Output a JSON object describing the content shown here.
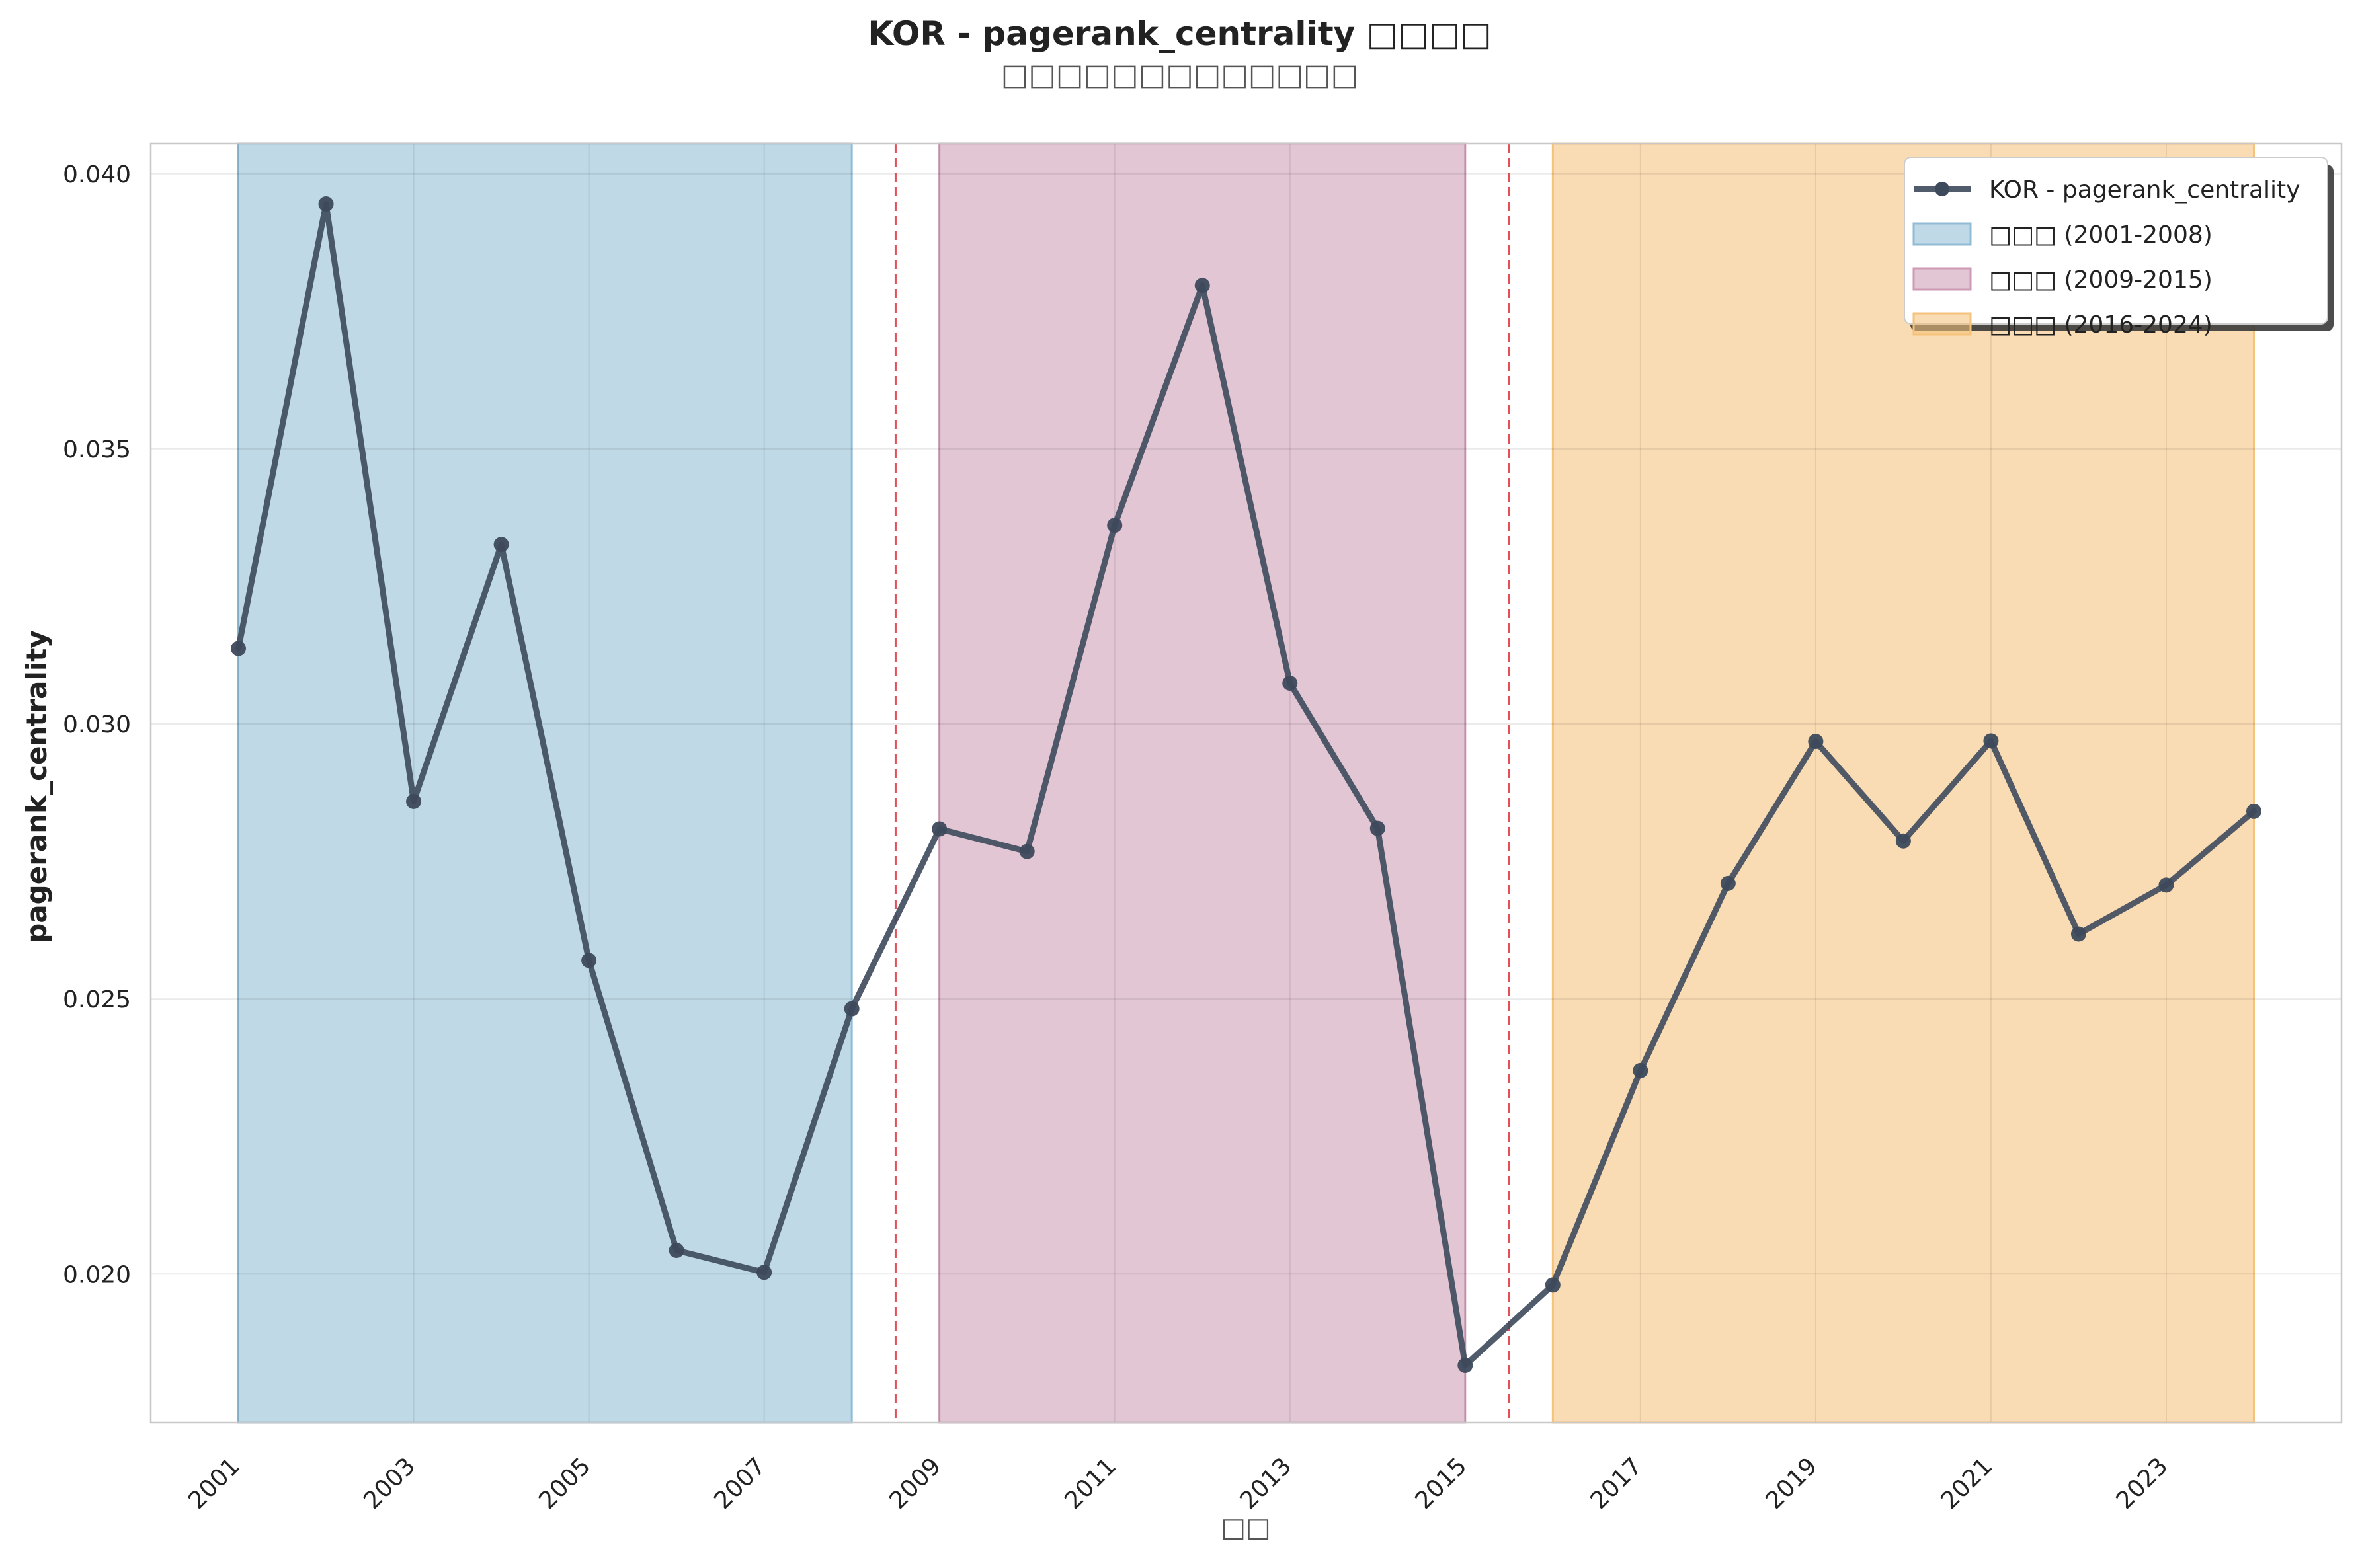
{
  "chart_data": {
    "type": "line",
    "title": "KOR - pagerank_centrality □□□□",
    "subtitle": "□□□□□□□□□□□□□",
    "xlabel": "□□",
    "ylabel": "pagerank_centrality",
    "x": [
      2001,
      2002,
      2003,
      2004,
      2005,
      2006,
      2007,
      2008,
      2009,
      2010,
      2011,
      2012,
      2013,
      2014,
      2015,
      2016,
      2017,
      2018,
      2019,
      2020,
      2021,
      2022,
      2023,
      2024
    ],
    "series": [
      {
        "name": "KOR - pagerank_centrality",
        "values": [
          0.03137,
          0.03945,
          0.02859,
          0.03326,
          0.0257,
          0.02043,
          0.02003,
          0.02482,
          0.02809,
          0.02768,
          0.03361,
          0.03797,
          0.03074,
          0.0281,
          0.01834,
          0.0198,
          0.0237,
          0.0271,
          0.02968,
          0.02787,
          0.02969,
          0.02618,
          0.02707,
          0.02841
        ],
        "color": "#3d4a5c"
      }
    ],
    "x_ticks": [
      "2001",
      "2003",
      "2005",
      "2007",
      "2009",
      "2011",
      "2013",
      "2015",
      "2017",
      "2019",
      "2021",
      "2023"
    ],
    "y_ticks": [
      "0.020",
      "0.025",
      "0.030",
      "0.035",
      "0.040"
    ],
    "xlim": [
      2000,
      2025
    ],
    "ylim": [
      0.0173,
      0.04055
    ],
    "grid": true,
    "legend_position": "top-right",
    "periods": [
      {
        "label": "□□□ (2001-2008)",
        "start": 2001,
        "end": 2008,
        "color": "#8fbcd4"
      },
      {
        "label": "□□□ (2009-2015)",
        "start": 2009,
        "end": 2015,
        "color": "#cc9ab4"
      },
      {
        "label": "□□□ (2016-2024)",
        "start": 2016,
        "end": 2024,
        "color": "#f5c27a"
      }
    ],
    "breakpoints": [
      2008.5,
      2015.5
    ],
    "breakpoint_color": "#e0303a"
  }
}
